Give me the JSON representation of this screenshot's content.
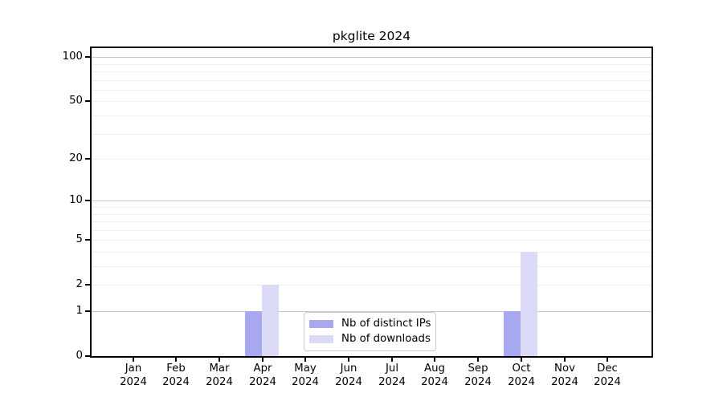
{
  "chart_data": {
    "type": "bar",
    "title": "pkglite 2024",
    "categories": [
      "Jan 2024",
      "Feb 2024",
      "Mar 2024",
      "Apr 2024",
      "May 2024",
      "Jun 2024",
      "Jul 2024",
      "Aug 2024",
      "Sep 2024",
      "Oct 2024",
      "Nov 2024",
      "Dec 2024"
    ],
    "series": [
      {
        "name": "Nb of distinct IPs",
        "color": "#a9a9f2",
        "values": [
          0,
          0,
          0,
          1,
          0,
          0,
          0,
          0,
          0,
          1,
          0,
          0
        ]
      },
      {
        "name": "Nb of downloads",
        "color": "#dbdbf8",
        "values": [
          0,
          0,
          0,
          2,
          0,
          0,
          0,
          0,
          0,
          4,
          0,
          0
        ]
      }
    ],
    "xlabel": "",
    "ylabel": "",
    "yscale": "log10(1+y)",
    "ylim": [
      0,
      115
    ],
    "ytick_labels": [
      0,
      1,
      2,
      5,
      10,
      20,
      50,
      100
    ],
    "major_gridlines": [
      1,
      10,
      100
    ],
    "minor_gridlines": [
      2,
      3,
      4,
      5,
      6,
      7,
      8,
      9,
      20,
      30,
      40,
      50,
      60,
      70,
      80,
      90
    ],
    "grid": true,
    "legend_position": "lower center (inside plot)"
  },
  "colors": {
    "plot_border": "#000000",
    "major_grid": "#c8c8c8",
    "minor_grid": "#efefef",
    "background": "#ffffff",
    "legend_border": "#cccccc"
  }
}
